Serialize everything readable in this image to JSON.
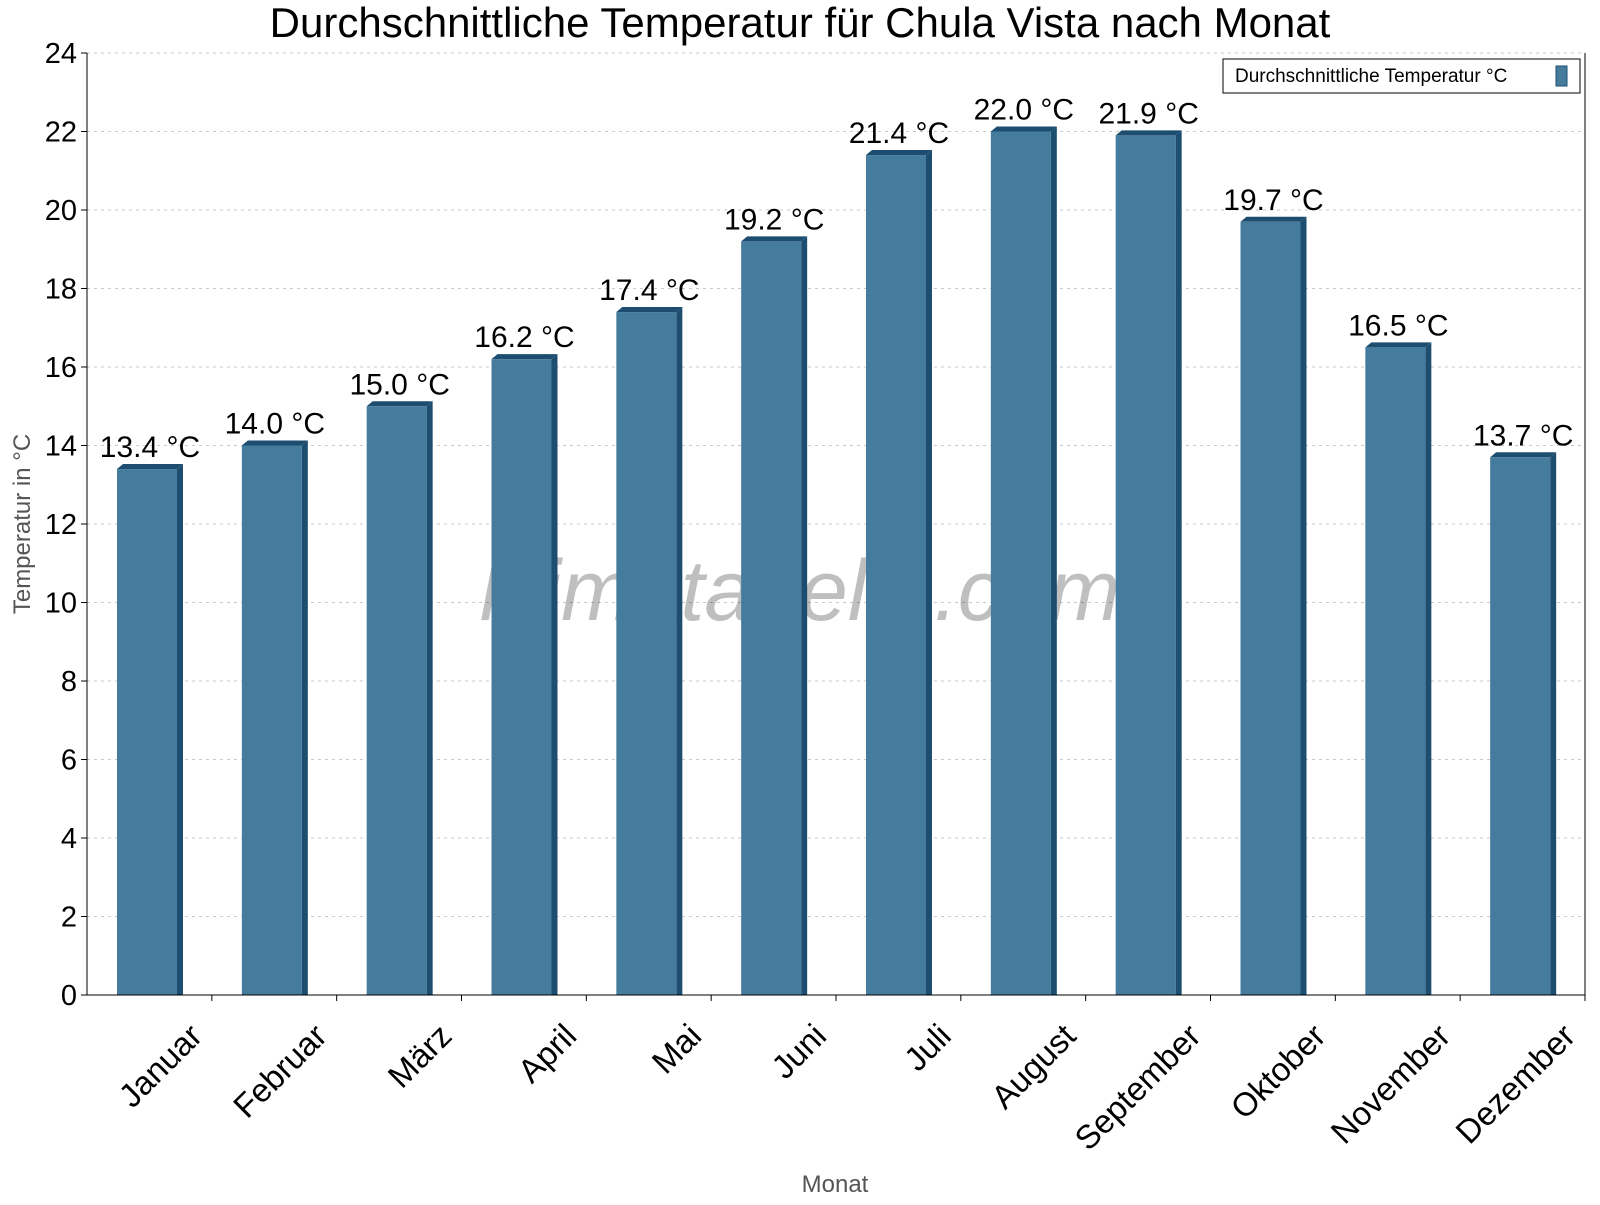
{
  "chart_data": {
    "type": "bar",
    "title": "Durchschnittliche Temperatur für Chula Vista nach Monat",
    "xlabel": "Monat",
    "ylabel": "Temperatur in °C",
    "categories": [
      "Januar",
      "Februar",
      "März",
      "April",
      "Mai",
      "Juni",
      "Juli",
      "August",
      "September",
      "Oktober",
      "November",
      "Dezember"
    ],
    "series": [
      {
        "name": "Durchschnittliche Temperatur °C",
        "values": [
          13.4,
          14.0,
          15.0,
          16.2,
          17.4,
          19.2,
          21.4,
          22.0,
          21.9,
          19.7,
          16.5,
          13.7
        ],
        "data_labels": [
          "13.4 °C",
          "14.0 °C",
          "15.0 °C",
          "16.2 °C",
          "17.4 °C",
          "19.2 °C",
          "21.4 °C",
          "22.0 °C",
          "21.9 °C",
          "19.7 °C",
          "16.5 °C",
          "13.7 °C"
        ]
      }
    ],
    "ylim": [
      0,
      24
    ],
    "yticks": [
      0,
      2,
      4,
      6,
      8,
      10,
      12,
      14,
      16,
      18,
      20,
      22,
      24
    ],
    "grid": true,
    "legend_position": "top-right",
    "watermark": "klimatabelle.com",
    "colors": {
      "bar": "#457b9d",
      "bar_side": "#1d4e6f",
      "grid": "#c8c8c8"
    }
  }
}
